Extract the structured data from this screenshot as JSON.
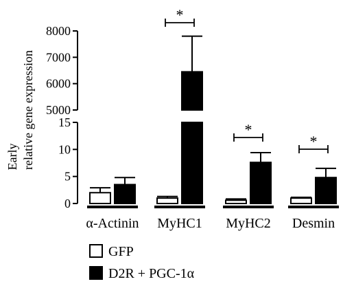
{
  "chart_data": {
    "type": "bar",
    "ylabel_lines": [
      "Early",
      "relative gene expression"
    ],
    "categories": [
      "α-Actinin",
      "MyHC1",
      "MyHC2",
      "Desmin"
    ],
    "series": [
      {
        "name": "GFP",
        "values": [
          2.0,
          1.0,
          0.6,
          1.0
        ],
        "errors": [
          0.9,
          0.3,
          0.25,
          0.15
        ],
        "color": "#ffffff"
      },
      {
        "name": "D2R + PGC-1α",
        "values": [
          3.5,
          6450,
          7.6,
          4.8
        ],
        "errors": [
          1.3,
          1350,
          1.8,
          1.7
        ],
        "color": "#000000"
      }
    ],
    "axis": {
      "lower": {
        "ylim": [
          0,
          15
        ],
        "ticks": [
          "0",
          "5",
          "10",
          "15"
        ]
      },
      "upper": {
        "ylim": [
          5000,
          8000
        ],
        "ticks": [
          "5000",
          "6000",
          "7000",
          "8000"
        ]
      }
    },
    "significance": [
      {
        "category": "MyHC1",
        "label": "*"
      },
      {
        "category": "MyHC2",
        "label": "*"
      },
      {
        "category": "Desmin",
        "label": "*"
      }
    ],
    "legend_position": "bottom-left"
  }
}
